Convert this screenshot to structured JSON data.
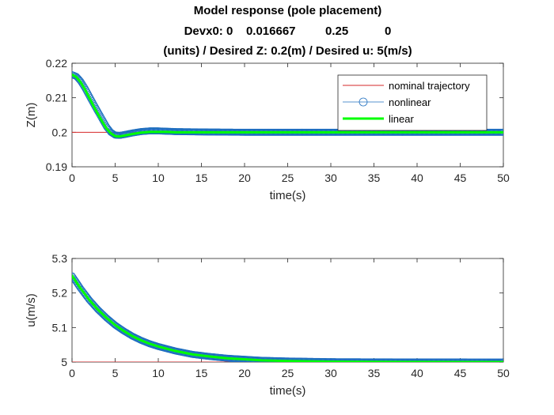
{
  "figure": {
    "title_lines": [
      "Model response (pole placement)",
      "Devx0: 0    0.016667         0.25           0",
      "(units) / Desired Z: 0.2(m) / Desired u: 5(m/s)"
    ]
  },
  "colors": {
    "nominal": "#d62728",
    "nonlinear": "#1f6fbf",
    "linear": "#00ff00",
    "axes": "#262626",
    "grid_tick": "#262626"
  },
  "chart_data": [
    {
      "type": "line",
      "xlabel": "time(s)",
      "ylabel": "Z(m)",
      "xlim": [
        0,
        50
      ],
      "ylim": [
        0.19,
        0.22
      ],
      "xticks": [
        "0",
        "5",
        "10",
        "15",
        "20",
        "25",
        "30",
        "35",
        "40",
        "45",
        "50"
      ],
      "yticks": [
        "0.19",
        "0.2",
        "0.21",
        "0.22"
      ],
      "legend": {
        "placement": "top-right",
        "entries": [
          "nominal trajectory",
          "nonlinear",
          "linear"
        ]
      },
      "grid": false,
      "series": [
        {
          "name": "nominal trajectory",
          "style": "thin-line",
          "x": [
            0,
            50
          ],
          "y": [
            0.2,
            0.2
          ]
        },
        {
          "name": "nonlinear",
          "style": "circle-markers",
          "x": [
            0,
            0.5,
            1,
            1.5,
            2,
            2.5,
            3,
            3.5,
            4,
            4.5,
            5,
            5.5,
            6,
            7,
            8,
            9,
            10,
            11,
            12,
            15,
            20,
            30,
            40,
            50
          ],
          "y": [
            0.2167,
            0.2162,
            0.2148,
            0.2128,
            0.2105,
            0.2082,
            0.206,
            0.2038,
            0.2016,
            0.2,
            0.1992,
            0.1991,
            0.1993,
            0.1998,
            0.2002,
            0.2004,
            0.2004,
            0.2003,
            0.2002,
            0.2001,
            0.2,
            0.2,
            0.2,
            0.2
          ]
        },
        {
          "name": "linear",
          "style": "thick-line",
          "x": [
            0,
            0.5,
            1,
            1.5,
            2,
            2.5,
            3,
            3.5,
            4,
            4.5,
            5,
            5.5,
            6,
            7,
            8,
            9,
            10,
            11,
            12,
            15,
            20,
            30,
            40,
            50
          ],
          "y": [
            0.2167,
            0.216,
            0.2145,
            0.2124,
            0.21,
            0.2076,
            0.2053,
            0.2031,
            0.2011,
            0.1997,
            0.1989,
            0.1988,
            0.199,
            0.1995,
            0.1999,
            0.2001,
            0.2001,
            0.2001,
            0.2,
            0.2,
            0.2,
            0.2,
            0.2,
            0.2
          ]
        }
      ]
    },
    {
      "type": "line",
      "xlabel": "time(s)",
      "ylabel": "u(m/s)",
      "xlim": [
        0,
        50
      ],
      "ylim": [
        5,
        5.3
      ],
      "xticks": [
        "0",
        "5",
        "10",
        "15",
        "20",
        "25",
        "30",
        "35",
        "40",
        "45",
        "50"
      ],
      "yticks": [
        "5",
        "5.1",
        "5.2",
        "5.3"
      ],
      "grid": false,
      "series": [
        {
          "name": "nominal trajectory",
          "style": "thin-line",
          "x": [
            0,
            50
          ],
          "y": [
            5,
            5
          ]
        },
        {
          "name": "nonlinear",
          "style": "circle-markers",
          "x": [
            0,
            1,
            2,
            3,
            4,
            5,
            6,
            7,
            8,
            9,
            10,
            12,
            14,
            16,
            18,
            20,
            22,
            25,
            30,
            35,
            40,
            45,
            50
          ],
          "y": [
            5.25,
            5.213,
            5.18,
            5.152,
            5.128,
            5.107,
            5.09,
            5.075,
            5.063,
            5.053,
            5.045,
            5.032,
            5.022,
            5.016,
            5.011,
            5.008,
            5.005,
            5.003,
            5.001,
            5.0005,
            5.0002,
            5.0001,
            5.0
          ]
        },
        {
          "name": "linear",
          "style": "thick-line",
          "x": [
            0,
            1,
            2,
            3,
            4,
            5,
            6,
            7,
            8,
            9,
            10,
            12,
            14,
            16,
            18,
            20,
            22,
            25,
            30,
            35,
            40,
            45,
            50
          ],
          "y": [
            5.25,
            5.213,
            5.18,
            5.152,
            5.128,
            5.107,
            5.09,
            5.075,
            5.063,
            5.053,
            5.045,
            5.032,
            5.022,
            5.016,
            5.011,
            5.008,
            5.005,
            5.003,
            5.001,
            5.0005,
            5.0002,
            5.0001,
            5.0
          ]
        }
      ]
    }
  ]
}
